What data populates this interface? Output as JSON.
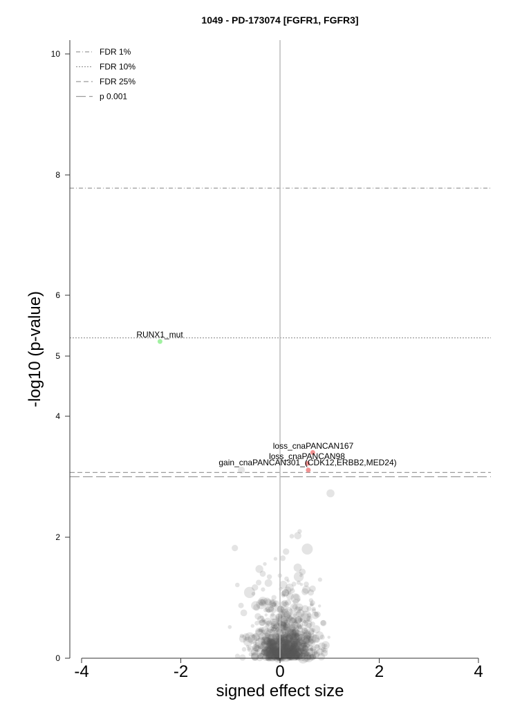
{
  "chart_data": {
    "type": "scatter",
    "title": "1049 - PD-173074 [FGFR1, FGFR3]",
    "xlabel": "signed effect size",
    "ylabel": "-log10 (p-value)",
    "x_ticks": [
      "-4",
      "-2",
      "0",
      "2",
      "4"
    ],
    "y_ticks": [
      "0",
      "2",
      "4",
      "5",
      "6",
      "8",
      "10"
    ],
    "xlim": [
      -4.3,
      4.3
    ],
    "y_scale": "pseudo-log (compressed above 2)",
    "y_tick_values": [
      0,
      2,
      4,
      5,
      6,
      8,
      10
    ],
    "grid": false,
    "legend_position": "top-left",
    "thresholds": [
      {
        "name": "FDR 1%",
        "y": 7.78,
        "style": "dash-dot"
      },
      {
        "name": "FDR 10%",
        "y": 5.3,
        "style": "dotted"
      },
      {
        "name": "FDR 25%",
        "y": 3.07,
        "style": "dashed"
      },
      {
        "name": "p 0.001",
        "y": 3.0,
        "style": "long-dashed"
      }
    ],
    "highlighted_points": [
      {
        "label": "RUNX1_mut",
        "x": -2.42,
        "y": 5.24,
        "color": "#90ee90"
      },
      {
        "label": "loss_cnaPANCAN167",
        "x": 0.66,
        "y": 3.4,
        "color": "#f08080"
      },
      {
        "label": "loss_cnaPANCAN98",
        "x": 0.55,
        "y": 3.22,
        "color": "#f08080"
      },
      {
        "label": "gain_cnaPANCAN301_(CDK12,ERBB2,MED24)",
        "x": 0.57,
        "y": 3.11,
        "color": "#f08080"
      }
    ],
    "background_color": "#555555"
  }
}
